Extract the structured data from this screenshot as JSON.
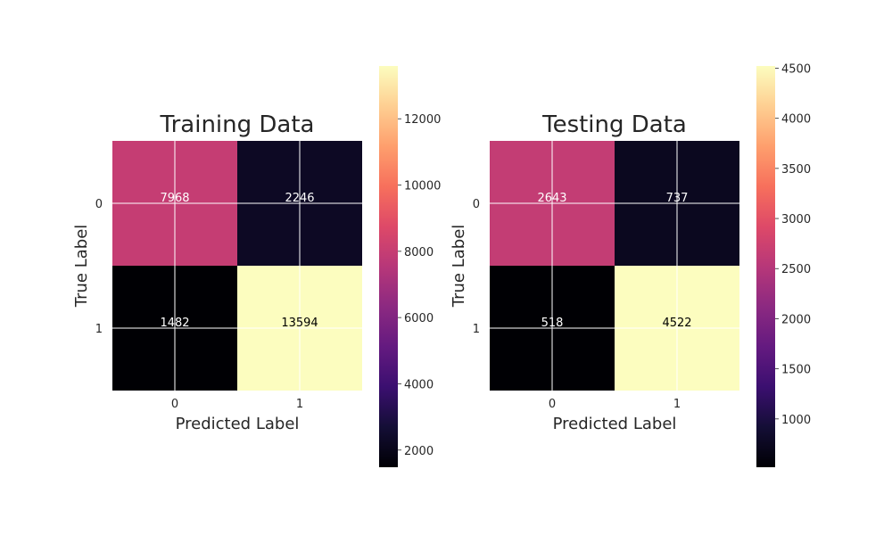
{
  "chart_data": [
    {
      "type": "heatmap",
      "title": "Training Data",
      "xlabel": "Predicted Label",
      "ylabel": "True Label",
      "x_categories": [
        "0",
        "1"
      ],
      "y_categories": [
        "0",
        "1"
      ],
      "values": [
        [
          7968,
          2246
        ],
        [
          1482,
          13594
        ]
      ],
      "colormap": "magma",
      "color_range": [
        1482,
        13594
      ],
      "colorbar_ticks": [
        "2000",
        "4000",
        "6000",
        "8000",
        "10000",
        "12000"
      ],
      "grid": true
    },
    {
      "type": "heatmap",
      "title": "Testing Data",
      "xlabel": "Predicted Label",
      "ylabel": "True Label",
      "x_categories": [
        "0",
        "1"
      ],
      "y_categories": [
        "0",
        "1"
      ],
      "values": [
        [
          2643,
          737
        ],
        [
          518,
          4522
        ]
      ],
      "colormap": "magma",
      "color_range": [
        518,
        4522
      ],
      "colorbar_ticks": [
        "1000",
        "1500",
        "2000",
        "2500",
        "3000",
        "3500",
        "4000",
        "4500"
      ],
      "grid": true
    }
  ]
}
